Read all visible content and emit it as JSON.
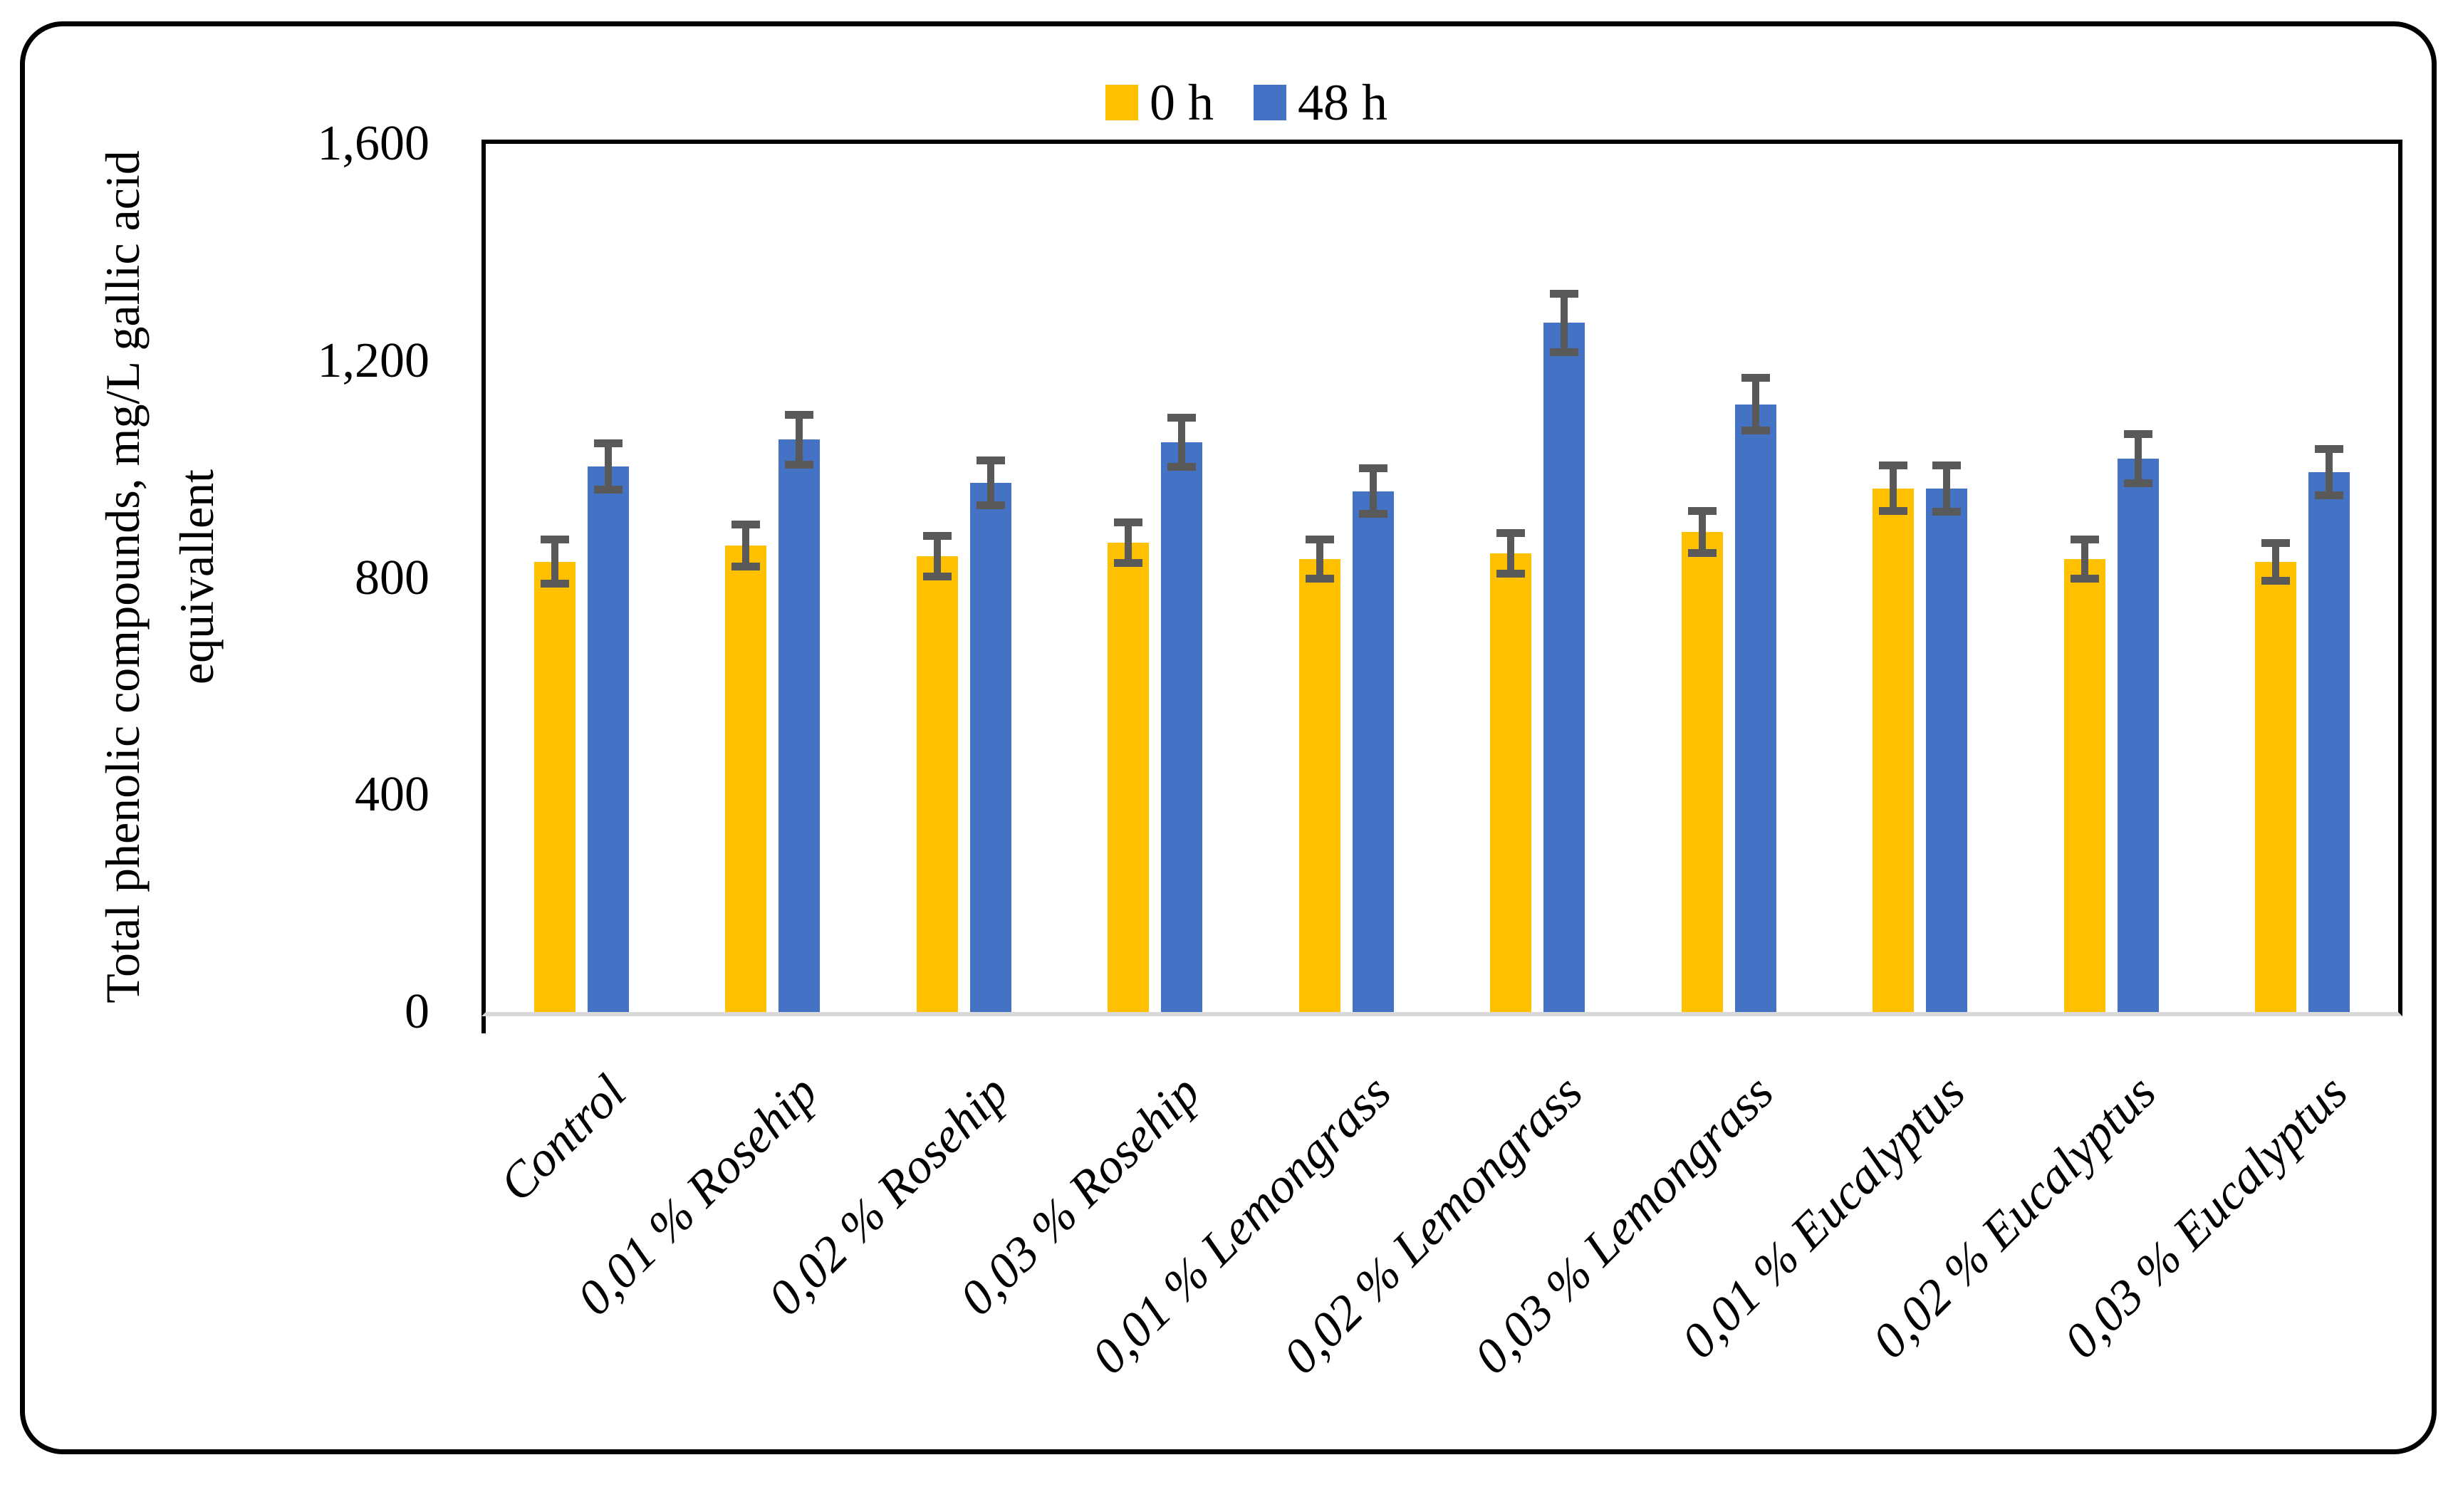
{
  "figure": {
    "background": "#FFFFFF",
    "frame_border_color": "#000000"
  },
  "chart_data": {
    "type": "bar",
    "title": "",
    "xlabel": "",
    "ylabel": "Total phenolic compounds, mg/L gallic acid equivallent",
    "ylabel_lines": [
      "Total phenolic compounds, mg/L gallic acid",
      "equivallent"
    ],
    "ylim": [
      0,
      1600
    ],
    "ytick_interval": 400,
    "yticks": [
      {
        "label": "0",
        "value": 0
      },
      {
        "label": "400",
        "value": 400
      },
      {
        "label": "800",
        "value": 800
      },
      {
        "label": "1,200",
        "value": 1200
      },
      {
        "label": "1,600",
        "value": 1600
      }
    ],
    "grid": false,
    "legend_position": "top-center",
    "x_labels_rotation_deg": 45,
    "error_bar_color": "#595959",
    "axis_line_color": "#000000",
    "baseline_color": "#D9D9D9",
    "categories": [
      "Control",
      "0,01 % Rosehip",
      "0,02 % Rosehip",
      "0,03 % Rosehip",
      "0,01 % Lemongrass",
      "0,02 % Lemongrass",
      "0,03 % Lemongrass",
      "0,01 % Eucalyptus",
      "0,02 % Eucalyptus",
      "0,03 % Eucalyptus"
    ],
    "series": [
      {
        "name": "0 h",
        "color": "#FFC000",
        "values": [
          830,
          860,
          840,
          865,
          835,
          845,
          885,
          965,
          835,
          830
        ],
        "errors": [
          48,
          46,
          45,
          45,
          43,
          45,
          46,
          49,
          43,
          42
        ]
      },
      {
        "name": "48 h",
        "color": "#4472C4",
        "values": [
          1005,
          1055,
          975,
          1050,
          960,
          1270,
          1120,
          965,
          1020,
          995
        ],
        "errors": [
          50,
          53,
          49,
          53,
          49,
          61,
          56,
          50,
          53,
          50
        ]
      }
    ]
  }
}
